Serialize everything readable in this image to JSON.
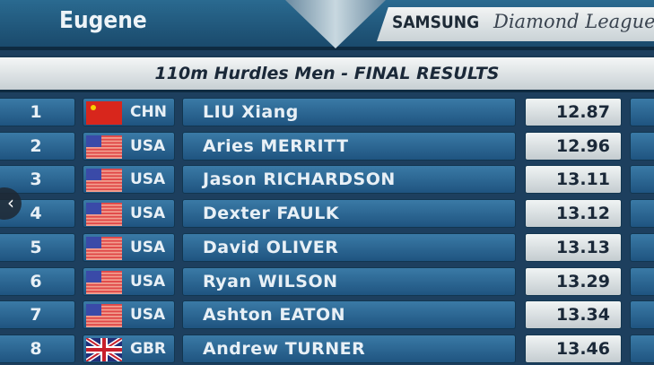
{
  "header": {
    "city": "Eugene",
    "sponsor_brand": "SAMSUNG",
    "sponsor_series": "Diamond League",
    "event_title": "110m Hurdles Men - FINAL RESULTS"
  },
  "results": [
    {
      "rank": "1",
      "flag": "china-flag",
      "country": "CHN",
      "name": "LIU Xiang",
      "time": "12.87"
    },
    {
      "rank": "2",
      "flag": "usa-flag",
      "country": "USA",
      "name": "Aries MERRITT",
      "time": "12.96"
    },
    {
      "rank": "3",
      "flag": "usa-flag",
      "country": "USA",
      "name": "Jason RICHARDSON",
      "time": "13.11"
    },
    {
      "rank": "4",
      "flag": "usa-flag",
      "country": "USA",
      "name": "Dexter FAULK",
      "time": "13.12"
    },
    {
      "rank": "5",
      "flag": "usa-flag",
      "country": "USA",
      "name": "David OLIVER",
      "time": "13.13"
    },
    {
      "rank": "6",
      "flag": "usa-flag",
      "country": "USA",
      "name": "Ryan WILSON",
      "time": "13.29"
    },
    {
      "rank": "7",
      "flag": "usa-flag",
      "country": "USA",
      "name": "Ashton EATON",
      "time": "13.34"
    },
    {
      "rank": "8",
      "flag": "uk-flag",
      "country": "GBR",
      "name": "Andrew TURNER",
      "time": "13.46"
    }
  ],
  "overlay": {
    "prev_icon": "chevron-left-icon",
    "prev_glyph": "‹"
  }
}
